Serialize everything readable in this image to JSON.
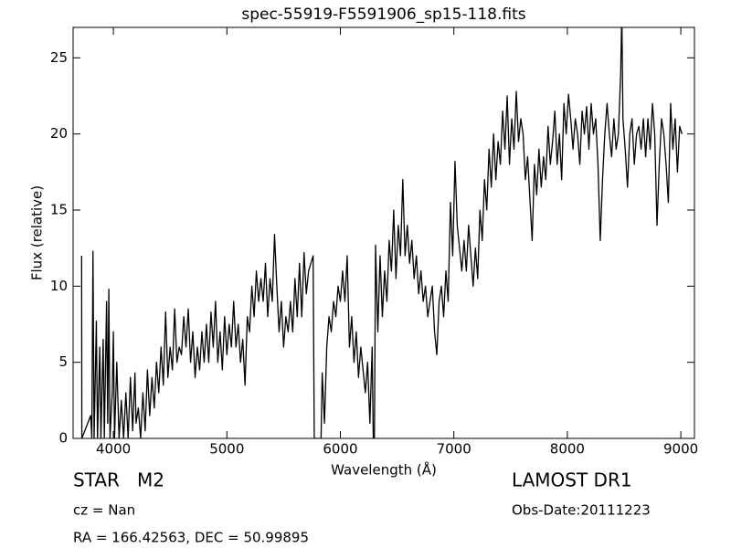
{
  "chart_data": {
    "type": "line",
    "title": "spec-55919-F5591906_sp15-118.fits",
    "xlabel": "Wavelength (Å)",
    "ylabel": "Flux (relative)",
    "annotations": [
      "STAR   M2",
      "cz = Nan",
      "RA = 166.42563, DEC = 50.99895",
      "LAMOST DR1",
      "Obs-Date:20111223"
    ],
    "color": "#000000",
    "xlim": [
      3645,
      9120
    ],
    "ylim": [
      0,
      27
    ],
    "xticks": [
      4000,
      5000,
      6000,
      7000,
      8000,
      9000
    ],
    "yticks": [
      0,
      5,
      10,
      15,
      20,
      25
    ],
    "grid": false,
    "x": [
      3720,
      3722,
      3800,
      3810,
      3820,
      3830,
      3850,
      3860,
      3880,
      3890,
      3910,
      3920,
      3940,
      3950,
      3960,
      3970,
      3990,
      4000,
      4010,
      4030,
      4050,
      4070,
      4090,
      4110,
      4130,
      4150,
      4170,
      4190,
      4200,
      4220,
      4240,
      4260,
      4280,
      4300,
      4320,
      4340,
      4360,
      4380,
      4400,
      4420,
      4440,
      4460,
      4480,
      4500,
      4520,
      4540,
      4560,
      4580,
      4600,
      4620,
      4640,
      4660,
      4680,
      4700,
      4720,
      4740,
      4760,
      4780,
      4800,
      4820,
      4840,
      4860,
      4880,
      4900,
      4920,
      4940,
      4960,
      4980,
      5000,
      5020,
      5040,
      5060,
      5080,
      5100,
      5120,
      5140,
      5160,
      5180,
      5200,
      5220,
      5240,
      5260,
      5280,
      5300,
      5320,
      5340,
      5360,
      5380,
      5400,
      5420,
      5440,
      5460,
      5480,
      5500,
      5520,
      5540,
      5560,
      5580,
      5600,
      5620,
      5640,
      5660,
      5680,
      5700,
      5720,
      5760,
      5770,
      5800,
      5830,
      5840,
      5860,
      5880,
      5900,
      5920,
      5940,
      5960,
      5980,
      6000,
      6020,
      6040,
      6060,
      6080,
      6100,
      6120,
      6140,
      6160,
      6180,
      6200,
      6220,
      6240,
      6260,
      6280,
      6290,
      6300,
      6310,
      6330,
      6350,
      6370,
      6390,
      6410,
      6430,
      6450,
      6470,
      6490,
      6510,
      6530,
      6550,
      6570,
      6590,
      6610,
      6630,
      6650,
      6670,
      6690,
      6710,
      6730,
      6750,
      6770,
      6790,
      6810,
      6830,
      6850,
      6870,
      6890,
      6910,
      6930,
      6950,
      6970,
      6990,
      7010,
      7030,
      7050,
      7070,
      7090,
      7110,
      7130,
      7150,
      7170,
      7190,
      7210,
      7230,
      7250,
      7270,
      7290,
      7310,
      7330,
      7350,
      7370,
      7390,
      7410,
      7430,
      7450,
      7470,
      7490,
      7510,
      7530,
      7550,
      7570,
      7590,
      7610,
      7630,
      7650,
      7690,
      7710,
      7730,
      7750,
      7770,
      7790,
      7810,
      7830,
      7850,
      7870,
      7890,
      7910,
      7930,
      7950,
      7970,
      7990,
      8010,
      8030,
      8050,
      8070,
      8090,
      8110,
      8130,
      8150,
      8170,
      8190,
      8210,
      8230,
      8250,
      8270,
      8290,
      8310,
      8330,
      8350,
      8370,
      8390,
      8410,
      8430,
      8450,
      8470,
      8480,
      8490,
      8510,
      8530,
      8550,
      8570,
      8590,
      8610,
      8630,
      8650,
      8670,
      8690,
      8710,
      8730,
      8750,
      8770,
      8790,
      8810,
      8830,
      8850,
      8870,
      8890,
      8910,
      8930,
      8950,
      8970,
      8990,
      9010
    ],
    "values": [
      12,
      0,
      1.5,
      0,
      12.3,
      0,
      7.7,
      0,
      6,
      0,
      6.5,
      0,
      9,
      1,
      9.8,
      0,
      3,
      7,
      0,
      5,
      0,
      2.5,
      0,
      3,
      0,
      4,
      0.5,
      4.3,
      1,
      2,
      0,
      3,
      0.5,
      4.5,
      1.5,
      4,
      2,
      5,
      3,
      6,
      3.5,
      8.3,
      4,
      6,
      4.5,
      8.5,
      5,
      6,
      5.5,
      8,
      6,
      8.5,
      5,
      7,
      4,
      6,
      4.5,
      7,
      5,
      7.5,
      5,
      8.3,
      6,
      9,
      5,
      7,
      4.5,
      8,
      5.5,
      7.5,
      6,
      9,
      6,
      7.5,
      5,
      6.5,
      3.5,
      8,
      7,
      10,
      8,
      11,
      9,
      10.5,
      9,
      11.5,
      8,
      10.5,
      9,
      13.4,
      10,
      7,
      9,
      6,
      8,
      7,
      9,
      7,
      10.5,
      8,
      11.5,
      8,
      12.2,
      9.5,
      11,
      12,
      0,
      0,
      0,
      4.3,
      1,
      6,
      8,
      7,
      9,
      8,
      10,
      9,
      11,
      9,
      12,
      6,
      8,
      5,
      7,
      4,
      6,
      4.5,
      3,
      5,
      1,
      6,
      0,
      0,
      12.7,
      7,
      12,
      8,
      11,
      9,
      13,
      11,
      15,
      10.5,
      14,
      12,
      17,
      12,
      14,
      11.5,
      13,
      10.5,
      12,
      9.5,
      11,
      9,
      10,
      8,
      9,
      10,
      7,
      5.5,
      9,
      10,
      8,
      11,
      9,
      15.5,
      12,
      18.2,
      14,
      12.5,
      11,
      13,
      11,
      14,
      12,
      10,
      12.5,
      10.5,
      15,
      13,
      17,
      15,
      19,
      16.5,
      20,
      17,
      19.5,
      18,
      21.5,
      19,
      22.5,
      18,
      21,
      19,
      22.8,
      19.5,
      21,
      20,
      17,
      18.5,
      13,
      18,
      16,
      19,
      16.5,
      18.5,
      17,
      20.5,
      18,
      19.5,
      21.5,
      18,
      20,
      17,
      22,
      20,
      22.6,
      21,
      19,
      21,
      20,
      18,
      21.5,
      20,
      21.8,
      19,
      22,
      20,
      21,
      18,
      13,
      17,
      20,
      22,
      20,
      18.5,
      21,
      19,
      20,
      24,
      28,
      21,
      19,
      16.5,
      20,
      21,
      18,
      20,
      20.5,
      19,
      21,
      18.5,
      21,
      19,
      22,
      20,
      14,
      18,
      21,
      20,
      18,
      15.5,
      22,
      19,
      21,
      17.5,
      20.5,
      20
    ]
  }
}
